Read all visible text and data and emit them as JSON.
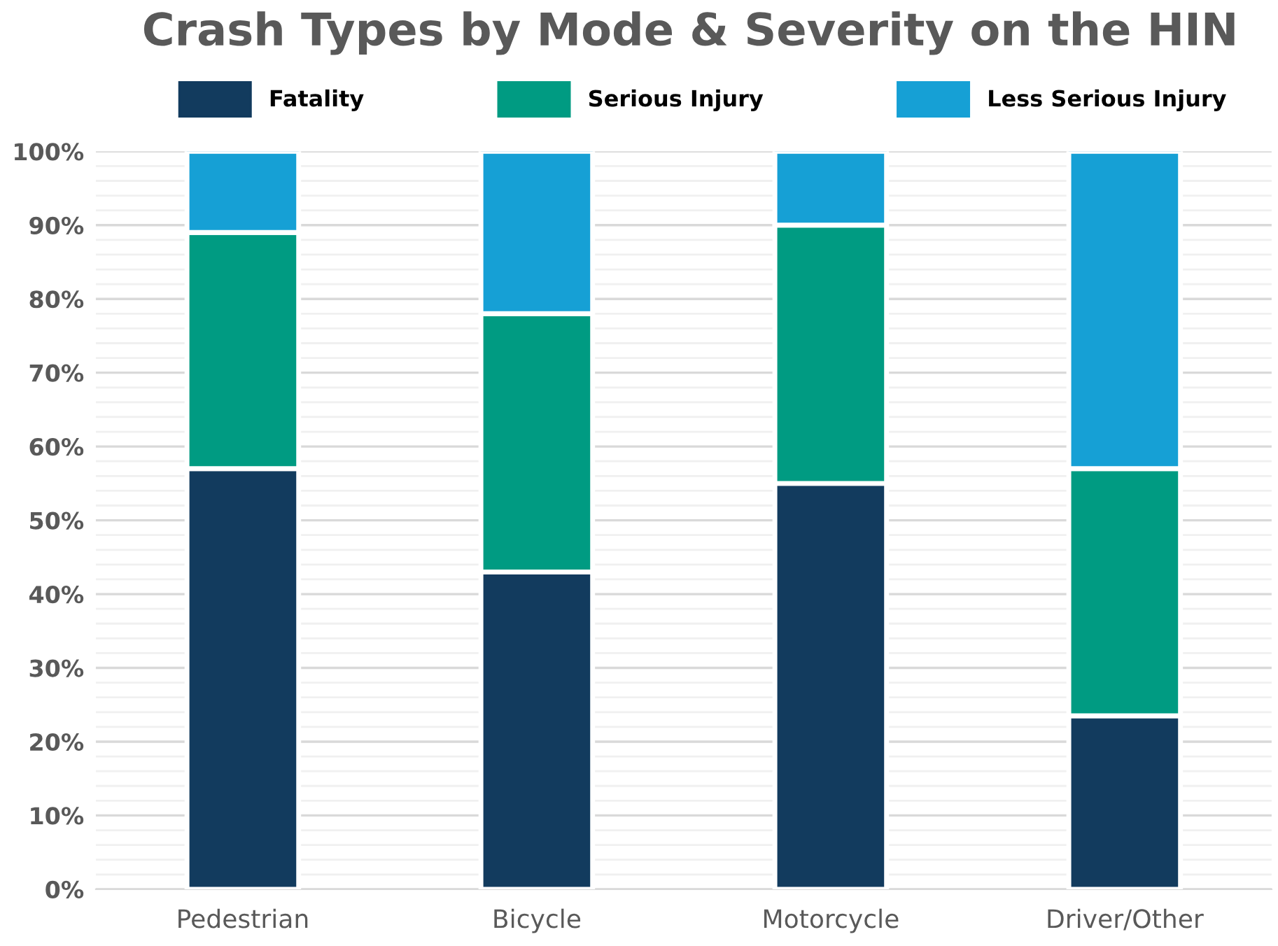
{
  "chart_data": {
    "type": "bar",
    "title": "Crash Types by Mode & Severity on the HIN",
    "categories": [
      "Pedestrian",
      "Bicycle",
      "Motorcycle",
      "Driver/Other"
    ],
    "stacked": true,
    "series": [
      {
        "name": "Fatality",
        "color": "#123b5e",
        "values": [
          57,
          43,
          55,
          23.5
        ]
      },
      {
        "name": "Serious Injury",
        "color": "#009b82",
        "values": [
          32,
          35,
          35,
          33.5
        ]
      },
      {
        "name": "Less Serious Injury",
        "color": "#16a0d5",
        "values": [
          11,
          22,
          10,
          43
        ]
      }
    ],
    "ylim": [
      0,
      100
    ],
    "yticks": [
      {
        "value": 0,
        "label": "0%"
      },
      {
        "value": 2,
        "label": null
      },
      {
        "value": 4,
        "label": null
      },
      {
        "value": 6,
        "label": null
      },
      {
        "value": 8,
        "label": null
      },
      {
        "value": 10,
        "label": "10%"
      },
      {
        "value": 12,
        "label": null
      },
      {
        "value": 14,
        "label": null
      },
      {
        "value": 16,
        "label": null
      },
      {
        "value": 18,
        "label": null
      },
      {
        "value": 20,
        "label": "20%"
      },
      {
        "value": 22,
        "label": null
      },
      {
        "value": 24,
        "label": null
      },
      {
        "value": 26,
        "label": null
      },
      {
        "value": 28,
        "label": null
      },
      {
        "value": 30,
        "label": "30%"
      },
      {
        "value": 32,
        "label": null
      },
      {
        "value": 34,
        "label": null
      },
      {
        "value": 36,
        "label": null
      },
      {
        "value": 38,
        "label": null
      },
      {
        "value": 40,
        "label": "40%"
      },
      {
        "value": 42,
        "label": null
      },
      {
        "value": 44,
        "label": null
      },
      {
        "value": 46,
        "label": null
      },
      {
        "value": 48,
        "label": null
      },
      {
        "value": 50,
        "label": "50%"
      },
      {
        "value": 52,
        "label": null
      },
      {
        "value": 54,
        "label": null
      },
      {
        "value": 56,
        "label": null
      },
      {
        "value": 58,
        "label": null
      },
      {
        "value": 60,
        "label": "60%"
      },
      {
        "value": 62,
        "label": null
      },
      {
        "value": 64,
        "label": null
      },
      {
        "value": 66,
        "label": null
      },
      {
        "value": 68,
        "label": null
      },
      {
        "value": 70,
        "label": "70%"
      },
      {
        "value": 72,
        "label": null
      },
      {
        "value": 74,
        "label": null
      },
      {
        "value": 76,
        "label": null
      },
      {
        "value": 78,
        "label": null
      },
      {
        "value": 80,
        "label": "80%"
      },
      {
        "value": 82,
        "label": null
      },
      {
        "value": 84,
        "label": null
      },
      {
        "value": 86,
        "label": null
      },
      {
        "value": 88,
        "label": null
      },
      {
        "value": 90,
        "label": "90%"
      },
      {
        "value": 92,
        "label": null
      },
      {
        "value": 94,
        "label": null
      },
      {
        "value": 96,
        "label": null
      },
      {
        "value": 98,
        "label": null
      },
      {
        "value": 100,
        "label": "100%"
      }
    ],
    "grid": "y",
    "legend": "top"
  }
}
